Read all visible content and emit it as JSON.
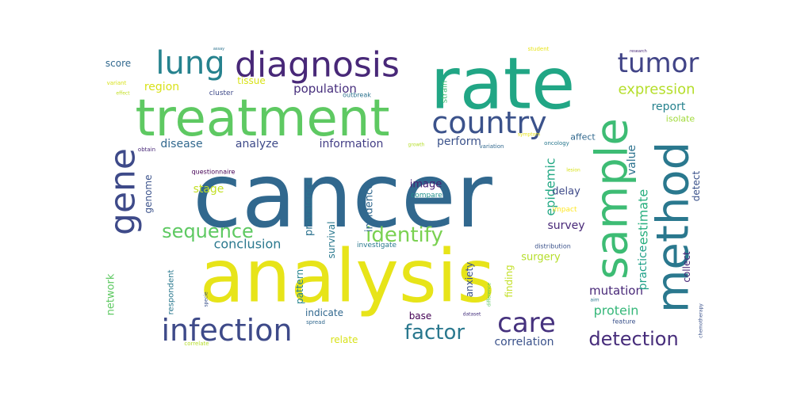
{
  "words": [
    {
      "text": "cancer",
      "color": "#31688e"
    },
    {
      "text": "analysis",
      "color": "#e7e419"
    },
    {
      "text": "rate",
      "color": "#21a685"
    },
    {
      "text": "treatment",
      "color": "#5ec962"
    },
    {
      "text": "sample",
      "color": "#3dbc74"
    },
    {
      "text": "method",
      "color": "#2a788e"
    },
    {
      "text": "diagnosis",
      "color": "#482878"
    },
    {
      "text": "gene",
      "color": "#3e4a89"
    },
    {
      "text": "lung",
      "color": "#26828e"
    },
    {
      "text": "country",
      "color": "#3b528b"
    },
    {
      "text": "tumor",
      "color": "#414487"
    },
    {
      "text": "infection",
      "color": "#3e4a89"
    },
    {
      "text": "care",
      "color": "#46327e"
    },
    {
      "text": "identify",
      "color": "#7ad151"
    },
    {
      "text": "sequence",
      "color": "#5ec962"
    },
    {
      "text": "factor",
      "color": "#2a788e"
    },
    {
      "text": "detection",
      "color": "#472d7b"
    },
    {
      "text": "expression",
      "color": "#b5de2b"
    },
    {
      "text": "epidemic",
      "color": "#22a884"
    },
    {
      "text": "mutation",
      "color": "#482878"
    },
    {
      "text": "protein",
      "color": "#35b779"
    },
    {
      "text": "estimate",
      "color": "#29af7f"
    },
    {
      "text": "conclusion",
      "color": "#2a788e"
    },
    {
      "text": "information",
      "color": "#433e85"
    },
    {
      "text": "population",
      "color": "#472f7d"
    },
    {
      "text": "disease",
      "color": "#31688e"
    },
    {
      "text": "report",
      "color": "#26828e"
    },
    {
      "text": "survey",
      "color": "#482878"
    },
    {
      "text": "surgery",
      "color": "#b5de2b"
    },
    {
      "text": "practice",
      "color": "#1fa088"
    },
    {
      "text": "correlation",
      "color": "#3b528b"
    },
    {
      "text": "region",
      "color": "#d8e219"
    },
    {
      "text": "stage",
      "color": "#c2df23"
    },
    {
      "text": "analyze",
      "color": "#3e4a89"
    },
    {
      "text": "perform",
      "color": "#3b528b"
    },
    {
      "text": "value",
      "color": "#2c728e"
    },
    {
      "text": "delay",
      "color": "#3e4a89"
    },
    {
      "text": "image",
      "color": "#482173"
    },
    {
      "text": "survival",
      "color": "#2a788e"
    },
    {
      "text": "prevalence",
      "color": "#2c728e"
    },
    {
      "text": "incidence",
      "color": "#31688e"
    },
    {
      "text": "genome",
      "color": "#3b528b"
    },
    {
      "text": "network",
      "color": "#5ec962"
    },
    {
      "text": "collect",
      "color": "#482878"
    },
    {
      "text": "detect",
      "color": "#3b528b"
    },
    {
      "text": "relate",
      "color": "#d8e219"
    },
    {
      "text": "base",
      "color": "#440154"
    },
    {
      "text": "indicate",
      "color": "#31688e"
    },
    {
      "text": "finding",
      "color": "#c2df23"
    },
    {
      "text": "anxiety",
      "color": "#3b528b"
    },
    {
      "text": "pattern",
      "color": "#25848e"
    },
    {
      "text": "score",
      "color": "#31688e"
    },
    {
      "text": "tissue",
      "color": "#d8e219"
    },
    {
      "text": "isolate",
      "color": "#a0da39"
    },
    {
      "text": "affect",
      "color": "#31688e"
    },
    {
      "text": "respondent",
      "color": "#2a788e"
    },
    {
      "text": "strain",
      "color": "#3dbc74"
    },
    {
      "text": "cluster",
      "color": "#3e4a89"
    },
    {
      "text": "outbreak",
      "color": "#2c728e"
    },
    {
      "text": "investigate",
      "color": "#2a788e"
    },
    {
      "text": "compare",
      "color": "#21918c"
    },
    {
      "text": "impact",
      "color": "#fde725"
    },
    {
      "text": "distribution",
      "color": "#3b528b"
    },
    {
      "text": "questionnaire",
      "color": "#440154"
    },
    {
      "text": "oncology",
      "color": "#2a788e"
    },
    {
      "text": "variation",
      "color": "#31688e"
    },
    {
      "text": "growth",
      "color": "#b5de2b"
    },
    {
      "text": "obtain",
      "color": "#482878"
    },
    {
      "text": "symptom",
      "color": "#e7e419"
    },
    {
      "text": "lesion",
      "color": "#d8e219"
    },
    {
      "text": "variant",
      "color": "#d8e219"
    },
    {
      "text": "effect",
      "color": "#c2df23"
    },
    {
      "text": "assay",
      "color": "#2c728e"
    },
    {
      "text": "student",
      "color": "#e7e419"
    },
    {
      "text": "research",
      "color": "#482878"
    },
    {
      "text": "spread",
      "color": "#31688e"
    },
    {
      "text": "specie",
      "color": "#3b528b"
    },
    {
      "text": "dataset",
      "color": "#46327e"
    },
    {
      "text": "difference",
      "color": "#5ec962"
    },
    {
      "text": "aim",
      "color": "#2a788e"
    },
    {
      "text": "feature",
      "color": "#3b528b"
    },
    {
      "text": "chemotherapy",
      "color": "#3b528b"
    },
    {
      "text": "correlate",
      "color": "#b5de2b"
    }
  ]
}
